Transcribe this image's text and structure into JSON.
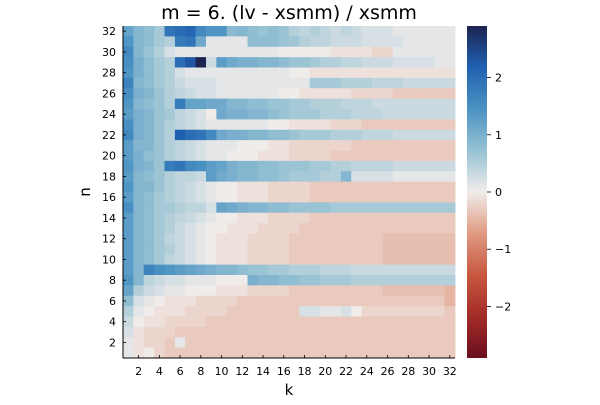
{
  "chart_data": {
    "type": "heatmap",
    "title": "m = 6. (lv - xsmm) / xsmm",
    "xlabel": "k",
    "ylabel": "n",
    "x_ticks": [
      "2",
      "4",
      "6",
      "8",
      "10",
      "12",
      "14",
      "16",
      "18",
      "20",
      "22",
      "24",
      "26",
      "28",
      "30",
      "32"
    ],
    "y_ticks": [
      "2",
      "4",
      "6",
      "8",
      "10",
      "12",
      "14",
      "16",
      "18",
      "20",
      "22",
      "24",
      "26",
      "28",
      "30",
      "32"
    ],
    "x_range": [
      1,
      32
    ],
    "y_range": [
      1,
      32
    ],
    "colorbar": {
      "ticks": [
        "-2",
        "-1",
        "0",
        "1",
        "2"
      ],
      "range": [
        -2.9,
        2.9
      ],
      "colormap": "balance (dark red - white - dark blue)",
      "low_color": "#6a0f1e",
      "mid_color": "#f0ecea",
      "high_color": "#1d2350"
    },
    "grid": false,
    "matrix_rows_top_to_bottom_n32_to_n1": [
      [
        1.2,
        0.9,
        0.8,
        0.6,
        1.9,
        2.0,
        2.1,
        1.6,
        1.4,
        1.4,
        0.85,
        0.9,
        0.8,
        0.7,
        0.8,
        0.7,
        0.5,
        0.4,
        0.5,
        0.4,
        0.3,
        0.4,
        0.3,
        0.2,
        0.2,
        0.2,
        0.1,
        0.1,
        0.1,
        0.1,
        0.1,
        0.1
      ],
      [
        1.4,
        0.9,
        0.8,
        0.6,
        0.5,
        1.8,
        1.9,
        1.1,
        0.1,
        0.1,
        0.1,
        0.1,
        0.8,
        0.8,
        0.8,
        0.7,
        0.65,
        0.5,
        0.4,
        0.4,
        0.3,
        0.3,
        0.3,
        0.2,
        0.2,
        0.2,
        0.2,
        0.1,
        0.1,
        0.1,
        0.1,
        0.1
      ],
      [
        1.6,
        0.9,
        0.7,
        0.5,
        0.2,
        0.1,
        0.1,
        0.1,
        0.1,
        0.1,
        0.1,
        0.1,
        0.1,
        0.1,
        0.1,
        0.0,
        0.0,
        0.0,
        0.0,
        0.0,
        -0.1,
        -0.1,
        -0.1,
        -0.1,
        -0.2,
        -0.2,
        0.1,
        0.1,
        0.1,
        0.1,
        0.1,
        0.1
      ],
      [
        1.5,
        1.0,
        0.8,
        0.6,
        0.5,
        2.0,
        2.3,
        2.9,
        0.3,
        1.3,
        1.1,
        1.0,
        1.0,
        0.9,
        0.9,
        0.8,
        0.7,
        0.7,
        0.6,
        0.5,
        0.5,
        0.4,
        0.4,
        0.3,
        0.3,
        0.3,
        0.2,
        0.2,
        0.2,
        0.2,
        0.1,
        0.1
      ],
      [
        1.4,
        1.0,
        0.8,
        0.6,
        0.5,
        0.2,
        0.1,
        0.1,
        0.1,
        0.1,
        0.1,
        0.1,
        0.1,
        0.1,
        0.1,
        0.1,
        0.0,
        0.0,
        -0.1,
        -0.1,
        -0.1,
        -0.1,
        -0.1,
        -0.1,
        -0.1,
        -0.1,
        -0.1,
        -0.1,
        -0.1,
        -0.1,
        -0.1,
        -0.1
      ],
      [
        1.7,
        0.9,
        0.8,
        0.6,
        0.5,
        0.3,
        0.2,
        0.2,
        0.2,
        0.1,
        0.1,
        0.1,
        0.1,
        0.1,
        0.1,
        0.1,
        0.1,
        0.1,
        0.6,
        0.6,
        0.6,
        0.5,
        0.5,
        0.5,
        0.4,
        0.4,
        0.4,
        0.3,
        0.3,
        0.3,
        0.3,
        0.3
      ],
      [
        1.5,
        1.0,
        0.9,
        0.7,
        0.5,
        0.4,
        0.3,
        0.2,
        0.2,
        0.1,
        0.1,
        0.1,
        0.1,
        0.1,
        0.1,
        0.0,
        0.0,
        -0.1,
        -0.1,
        -0.1,
        -0.1,
        -0.1,
        -0.2,
        -0.2,
        -0.2,
        -0.2,
        -0.3,
        -0.3,
        -0.3,
        -0.3,
        -0.3,
        -0.3
      ],
      [
        1.4,
        0.9,
        0.8,
        0.7,
        0.5,
        1.8,
        1.2,
        1.2,
        1.1,
        1.1,
        0.9,
        0.9,
        0.8,
        0.8,
        0.7,
        0.7,
        0.6,
        0.6,
        0.5,
        0.5,
        0.5,
        0.4,
        0.4,
        0.4,
        0.3,
        0.3,
        0.3,
        0.3,
        0.3,
        0.3,
        0.3,
        0.3
      ],
      [
        1.3,
        1.0,
        0.9,
        0.7,
        0.6,
        0.4,
        0.3,
        0.2,
        0.0,
        1.1,
        1.0,
        1.0,
        0.9,
        0.9,
        0.8,
        0.7,
        0.6,
        0.6,
        0.6,
        0.5,
        0.5,
        0.5,
        0.4,
        0.4,
        0.4,
        0.3,
        0.3,
        0.3,
        0.3,
        0.3,
        0.3,
        0.3
      ],
      [
        1.5,
        1.0,
        0.9,
        0.7,
        0.5,
        0.4,
        0.3,
        0.2,
        0.1,
        0.1,
        0.1,
        0.1,
        0.1,
        0.1,
        0.0,
        0.0,
        -0.1,
        -0.1,
        -0.1,
        -0.1,
        -0.2,
        -0.2,
        -0.2,
        -0.3,
        -0.3,
        -0.3,
        -0.3,
        -0.3,
        -0.3,
        -0.3,
        -0.3,
        -0.3
      ],
      [
        1.6,
        1.0,
        0.9,
        0.7,
        0.5,
        2.2,
        2.0,
        1.9,
        1.6,
        1.1,
        1.0,
        1.0,
        0.9,
        0.9,
        0.8,
        0.8,
        0.7,
        0.6,
        0.6,
        0.6,
        0.5,
        0.5,
        0.5,
        0.4,
        0.4,
        0.4,
        0.3,
        0.3,
        0.3,
        0.3,
        0.3,
        0.3
      ],
      [
        1.3,
        0.9,
        0.9,
        0.7,
        0.5,
        0.4,
        0.3,
        0.2,
        0.1,
        0.1,
        0.1,
        0.0,
        0.0,
        0.0,
        -0.1,
        -0.1,
        -0.2,
        -0.2,
        -0.2,
        -0.2,
        -0.2,
        -0.2,
        -0.3,
        -0.3,
        -0.3,
        -0.3,
        -0.3,
        -0.3,
        -0.3,
        -0.3,
        -0.3,
        -0.3
      ],
      [
        1.3,
        1.0,
        0.8,
        0.7,
        0.5,
        0.4,
        0.3,
        0.2,
        0.1,
        0.1,
        0.0,
        0.0,
        0.0,
        -0.1,
        -0.1,
        -0.1,
        -0.2,
        -0.2,
        -0.2,
        -0.2,
        -0.3,
        -0.3,
        -0.3,
        -0.3,
        -0.3,
        -0.3,
        -0.3,
        -0.3,
        -0.3,
        -0.3,
        -0.3,
        -0.3
      ],
      [
        1.4,
        1.0,
        0.9,
        0.7,
        1.8,
        1.9,
        1.6,
        1.5,
        1.3,
        1.2,
        1.0,
        0.9,
        0.9,
        0.8,
        0.8,
        0.7,
        0.7,
        0.7,
        0.6,
        0.6,
        0.5,
        0.5,
        0.4,
        0.4,
        0.4,
        0.4,
        0.3,
        0.3,
        0.3,
        0.3,
        0.3,
        0.3
      ],
      [
        1.3,
        0.9,
        0.8,
        0.7,
        0.5,
        0.4,
        0.4,
        0.3,
        1.3,
        1.1,
        1.0,
        0.9,
        0.9,
        0.8,
        0.8,
        0.7,
        0.6,
        0.6,
        0.6,
        0.5,
        0.5,
        0.9,
        0.2,
        0.2,
        0.2,
        0.2,
        0.1,
        0.1,
        0.1,
        0.1,
        0.1,
        0.1
      ],
      [
        1.4,
        0.9,
        0.9,
        0.7,
        0.5,
        0.4,
        0.3,
        0.2,
        0.1,
        0.0,
        0.0,
        -0.1,
        -0.1,
        -0.1,
        -0.2,
        -0.2,
        -0.2,
        -0.2,
        -0.3,
        -0.3,
        -0.3,
        -0.3,
        -0.3,
        -0.3,
        -0.3,
        -0.3,
        -0.3,
        -0.3,
        -0.3,
        -0.3,
        -0.3,
        -0.3
      ],
      [
        1.3,
        0.9,
        0.8,
        0.6,
        0.5,
        0.4,
        0.3,
        0.2,
        0.1,
        0.0,
        0.0,
        -0.1,
        -0.1,
        -0.1,
        -0.2,
        -0.2,
        -0.2,
        -0.2,
        -0.3,
        -0.3,
        -0.3,
        -0.3,
        -0.3,
        -0.3,
        -0.3,
        -0.3,
        -0.3,
        -0.3,
        -0.3,
        -0.3,
        -0.3,
        -0.3
      ],
      [
        1.5,
        0.9,
        0.8,
        0.6,
        0.6,
        0.5,
        0.4,
        0.4,
        0.2,
        1.2,
        1.1,
        1.0,
        0.9,
        0.9,
        0.8,
        0.8,
        0.7,
        0.7,
        0.7,
        0.7,
        0.6,
        0.6,
        0.6,
        0.6,
        0.6,
        0.6,
        0.6,
        0.6,
        0.6,
        0.6,
        0.6,
        0.6
      ],
      [
        1.3,
        0.9,
        0.8,
        0.6,
        0.5,
        0.4,
        0.3,
        0.2,
        0.1,
        0.0,
        0.0,
        -0.1,
        -0.1,
        -0.1,
        -0.2,
        -0.2,
        -0.2,
        -0.2,
        -0.3,
        -0.3,
        -0.3,
        -0.3,
        -0.3,
        -0.3,
        -0.3,
        -0.3,
        -0.3,
        -0.3,
        -0.3,
        -0.3,
        -0.3,
        -0.3
      ],
      [
        1.3,
        0.9,
        0.8,
        0.6,
        0.5,
        0.3,
        0.2,
        0.1,
        0.0,
        0.0,
        -0.1,
        -0.1,
        -0.1,
        -0.2,
        -0.2,
        -0.2,
        -0.2,
        -0.3,
        -0.3,
        -0.3,
        -0.3,
        -0.3,
        -0.3,
        -0.3,
        -0.3,
        -0.3,
        -0.3,
        -0.3,
        -0.3,
        -0.3,
        -0.3,
        -0.3
      ],
      [
        1.3,
        0.9,
        0.8,
        0.6,
        0.4,
        0.3,
        0.2,
        0.1,
        0.0,
        -0.1,
        -0.1,
        -0.1,
        -0.2,
        -0.2,
        -0.2,
        -0.2,
        -0.3,
        -0.3,
        -0.3,
        -0.3,
        -0.3,
        -0.3,
        -0.3,
        -0.3,
        -0.3,
        -0.4,
        -0.4,
        -0.4,
        -0.4,
        -0.4,
        -0.4,
        -0.4
      ],
      [
        1.3,
        0.9,
        0.8,
        0.6,
        0.5,
        0.3,
        0.2,
        0.1,
        0.0,
        -0.1,
        -0.1,
        -0.1,
        -0.2,
        -0.2,
        -0.2,
        -0.2,
        -0.3,
        -0.3,
        -0.3,
        -0.3,
        -0.3,
        -0.3,
        -0.3,
        -0.3,
        -0.3,
        -0.4,
        -0.4,
        -0.4,
        -0.4,
        -0.4,
        -0.4,
        -0.4
      ],
      [
        1.3,
        0.9,
        0.8,
        0.6,
        0.4,
        0.3,
        0.2,
        0.1,
        0.0,
        -0.1,
        -0.1,
        -0.1,
        -0.2,
        -0.2,
        -0.2,
        -0.2,
        -0.3,
        -0.3,
        -0.3,
        -0.3,
        -0.3,
        -0.3,
        -0.3,
        -0.3,
        -0.3,
        -0.4,
        -0.4,
        -0.4,
        -0.4,
        -0.4,
        -0.4,
        -0.4
      ],
      [
        1.3,
        0.9,
        1.7,
        1.5,
        1.4,
        1.3,
        1.2,
        1.1,
        1.0,
        0.9,
        0.9,
        0.8,
        0.7,
        0.7,
        0.6,
        0.6,
        0.5,
        0.5,
        0.5,
        0.4,
        0.4,
        0.4,
        0.3,
        0.3,
        0.3,
        0.3,
        0.3,
        0.3,
        0.3,
        0.3,
        0.3,
        0.3
      ],
      [
        1.4,
        0.9,
        0.4,
        0.3,
        0.2,
        0.2,
        0.1,
        0.1,
        0.1,
        0.0,
        0.0,
        0.0,
        1.0,
        0.9,
        0.9,
        0.8,
        0.8,
        0.7,
        0.7,
        0.6,
        0.6,
        0.6,
        0.5,
        0.5,
        0.5,
        0.5,
        0.5,
        0.5,
        0.5,
        0.5,
        0.5,
        0.5
      ],
      [
        1.2,
        0.5,
        0.3,
        0.2,
        0.1,
        0.1,
        0.0,
        0.0,
        0.0,
        -0.1,
        -0.1,
        -0.1,
        -0.2,
        -0.2,
        -0.2,
        -0.2,
        -0.3,
        -0.3,
        -0.3,
        -0.3,
        -0.3,
        -0.3,
        -0.3,
        -0.3,
        -0.3,
        -0.4,
        -0.4,
        -0.4,
        -0.4,
        -0.4,
        -0.4,
        -0.5
      ],
      [
        0.8,
        0.2,
        0.1,
        0.0,
        -0.1,
        -0.1,
        -0.1,
        -0.2,
        -0.2,
        -0.2,
        -0.2,
        -0.3,
        -0.3,
        -0.3,
        -0.3,
        -0.3,
        -0.3,
        -0.3,
        -0.3,
        -0.3,
        -0.3,
        -0.3,
        -0.3,
        -0.3,
        -0.3,
        -0.3,
        -0.3,
        -0.3,
        -0.3,
        -0.3,
        -0.3,
        -0.5
      ],
      [
        0.5,
        0.1,
        0.0,
        -0.1,
        -0.1,
        -0.1,
        -0.2,
        -0.2,
        -0.2,
        -0.2,
        -0.3,
        -0.3,
        -0.3,
        -0.3,
        -0.3,
        -0.3,
        -0.3,
        0.2,
        0.2,
        0.1,
        0.1,
        0.2,
        0.0,
        -0.2,
        -0.2,
        -0.2,
        -0.2,
        -0.2,
        -0.2,
        -0.2,
        -0.2,
        -0.3
      ],
      [
        0.3,
        0.0,
        -0.1,
        -0.1,
        -0.2,
        -0.2,
        -0.2,
        -0.2,
        -0.3,
        -0.3,
        -0.3,
        -0.3,
        -0.3,
        -0.3,
        -0.3,
        -0.3,
        -0.3,
        -0.3,
        -0.3,
        -0.3,
        -0.3,
        -0.3,
        -0.3,
        -0.3,
        -0.3,
        -0.3,
        -0.3,
        -0.3,
        -0.3,
        -0.3,
        -0.3,
        -0.3
      ],
      [
        0.2,
        -0.1,
        -0.2,
        -0.2,
        -0.2,
        -0.3,
        -0.3,
        -0.3,
        -0.3,
        -0.3,
        -0.3,
        -0.3,
        -0.3,
        -0.3,
        -0.3,
        -0.3,
        -0.3,
        -0.3,
        -0.3,
        -0.3,
        -0.3,
        -0.3,
        -0.3,
        -0.3,
        -0.3,
        -0.3,
        -0.3,
        -0.3,
        -0.3,
        -0.3,
        -0.3,
        -0.3
      ],
      [
        0.1,
        -0.1,
        -0.2,
        -0.2,
        -0.3,
        0.1,
        -0.3,
        -0.3,
        -0.3,
        -0.3,
        -0.3,
        -0.3,
        -0.3,
        -0.3,
        -0.3,
        -0.3,
        -0.3,
        -0.3,
        -0.3,
        -0.3,
        -0.3,
        -0.3,
        -0.3,
        -0.3,
        -0.3,
        -0.3,
        -0.3,
        -0.3,
        -0.3,
        -0.3,
        -0.3,
        -0.3
      ],
      [
        0.1,
        -0.1,
        0.0,
        -0.2,
        -0.3,
        -0.3,
        -0.3,
        -0.3,
        -0.3,
        -0.3,
        -0.3,
        -0.3,
        -0.3,
        -0.3,
        -0.3,
        -0.3,
        -0.3,
        -0.3,
        -0.3,
        -0.3,
        -0.3,
        -0.3,
        -0.3,
        -0.3,
        -0.3,
        -0.3,
        -0.3,
        -0.3,
        -0.3,
        -0.3,
        -0.3,
        -0.3
      ]
    ]
  }
}
